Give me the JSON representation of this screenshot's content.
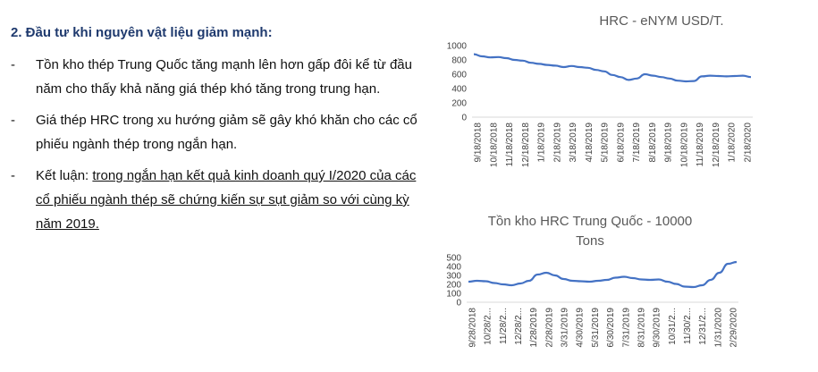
{
  "section": {
    "heading": "2. Đầu tư khi nguyên vật liệu giảm mạnh:",
    "bullets": [
      {
        "dash": "-",
        "text": "Tồn kho thép Trung Quốc tăng mạnh lên hơn gấp đôi kể từ đầu năm cho thấy khả năng giá thép khó tăng trong trung hạn."
      },
      {
        "dash": "-",
        "text": "Giá thép HRC trong xu hướng giảm sẽ gây khó khăn cho các cổ phiếu ngành thép trong ngắn hạn."
      },
      {
        "dash": "-",
        "prefix": "Kết luận: ",
        "text": "trong ngắn hạn kết quả kinh doanh quý I/2020 của các cổ phiếu ngành thép sẽ chứng kiến sự sụt giảm so với cùng kỳ năm 2019."
      }
    ]
  },
  "chart_data": [
    {
      "type": "line",
      "title": "HRC  - eNYM USD/T.",
      "ylim": [
        0,
        1000
      ],
      "yticks": [
        "0",
        "200",
        "400",
        "600",
        "800",
        "1000"
      ],
      "xticks": [
        "9/18/2018",
        "10/18/2018",
        "11/18/2018",
        "12/18/2018",
        "1/18/2019",
        "2/18/2019",
        "3/18/2019",
        "4/18/2019",
        "5/18/2019",
        "6/18/2019",
        "7/18/2019",
        "8/18/2019",
        "9/18/2019",
        "10/18/2019",
        "11/18/2019",
        "12/18/2019",
        "1/18/2020",
        "2/18/2020"
      ],
      "line_color": "#4472c4",
      "series": [
        {
          "values": [
            880,
            850,
            835,
            840,
            825,
            800,
            790,
            760,
            745,
            730,
            720,
            700,
            715,
            700,
            690,
            660,
            640,
            590,
            560,
            520,
            540,
            600,
            580,
            560,
            540,
            510,
            500,
            505,
            570,
            580,
            575,
            570,
            575,
            580,
            560
          ]
        }
      ],
      "grid": false
    },
    {
      "type": "line",
      "title": "Tồn kho HRC Trung Quốc  -  10000 Tons",
      "ylim": [
        0,
        500
      ],
      "yticks": [
        "0",
        "100",
        "200",
        "300",
        "400",
        "500"
      ],
      "xticks": [
        "9/28/2018",
        "10/28/2...",
        "11/28/2...",
        "12/28/2...",
        "1/28/2019",
        "2/28/2019",
        "3/31/2019",
        "4/30/2019",
        "5/31/2019",
        "6/30/2019",
        "7/31/2019",
        "8/31/2019",
        "9/30/2019",
        "10/31/2...",
        "11/30/2...",
        "12/31/2...",
        "1/31/2020",
        "2/29/2020"
      ],
      "line_color": "#4472c4",
      "series": [
        {
          "values": [
            230,
            240,
            235,
            215,
            200,
            190,
            210,
            240,
            310,
            330,
            300,
            260,
            240,
            235,
            230,
            240,
            250,
            275,
            285,
            270,
            255,
            250,
            255,
            230,
            205,
            175,
            170,
            190,
            250,
            330,
            430,
            450
          ]
        }
      ],
      "grid": false
    }
  ]
}
